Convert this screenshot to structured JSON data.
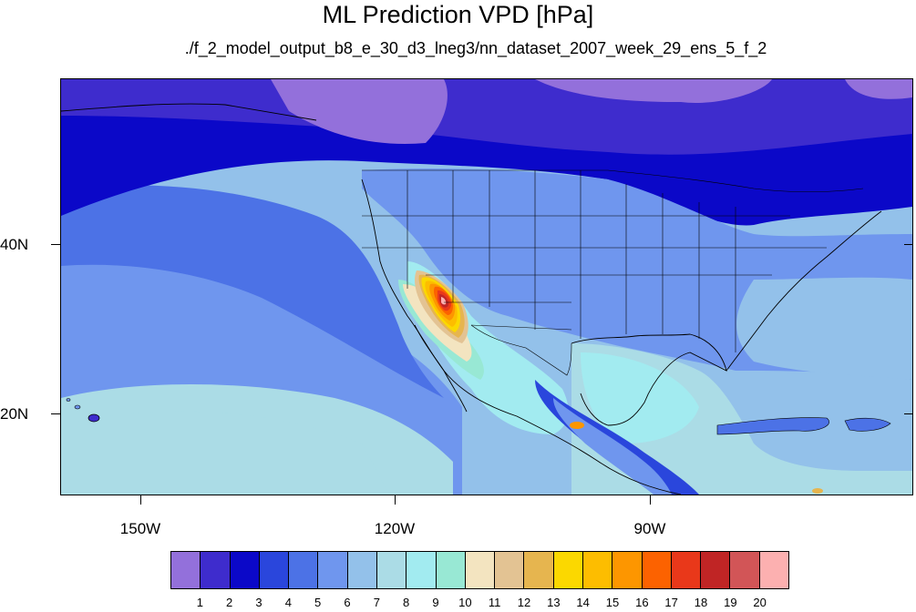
{
  "header": {
    "title": "ML Prediction VPD [hPa]",
    "subtitle": "./f_2_model_output_b8_e_30_d3_lneg3/nn_dataset_2007_week_29_ens_5_f_2"
  },
  "axes": {
    "latitude_labels": [
      "40N",
      "20N"
    ],
    "longitude_labels": [
      "150W",
      "120W",
      "90W"
    ]
  },
  "colorbar": {
    "colors": [
      "#9370db",
      "#3e2ccd",
      "#0b08c8",
      "#2a46dc",
      "#4c72e6",
      "#6f96ee",
      "#93c1ea",
      "#abdce6",
      "#a2ebf0",
      "#98e8d4",
      "#f3e4c0",
      "#e3c393",
      "#e6b54f",
      "#fbd800",
      "#fdbd00",
      "#fd9600",
      "#fc6200",
      "#e9381a",
      "#c02525",
      "#d25557",
      "#fcb0b0"
    ],
    "labels": [
      "1",
      "2",
      "3",
      "4",
      "5",
      "6",
      "7",
      "8",
      "9",
      "10",
      "11",
      "12",
      "13",
      "14",
      "15",
      "16",
      "17",
      "18",
      "19",
      "20"
    ]
  }
}
